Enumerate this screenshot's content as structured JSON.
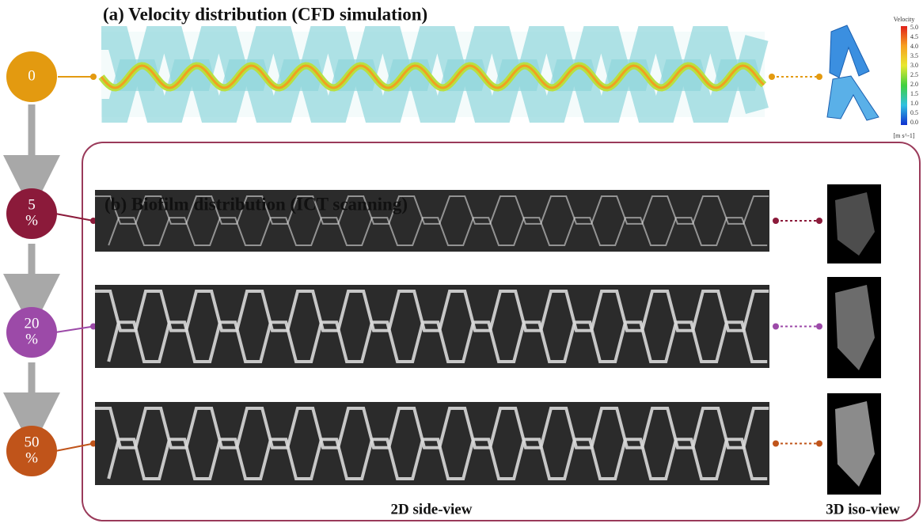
{
  "panel_a": {
    "title": "(a) Velocity distribution (CFD simulation)",
    "colorbar": {
      "title": "Velocity",
      "ticks": [
        "5.0",
        "4.5",
        "4.0",
        "3.5",
        "3.0",
        "2.5",
        "2.0",
        "1.5",
        "1.0",
        "0.5",
        "0.0"
      ],
      "unit": "[m s^-1]"
    }
  },
  "panel_b": {
    "title": "(b) Biofilm distribution (ICT scanning)",
    "side_label": "2D side-view",
    "iso_label": "3D iso-view"
  },
  "stages": [
    {
      "lines": [
        "0"
      ]
    },
    {
      "lines": [
        "5",
        "%"
      ]
    },
    {
      "lines": [
        "20",
        "%"
      ]
    },
    {
      "lines": [
        "50",
        "%"
      ]
    }
  ]
}
